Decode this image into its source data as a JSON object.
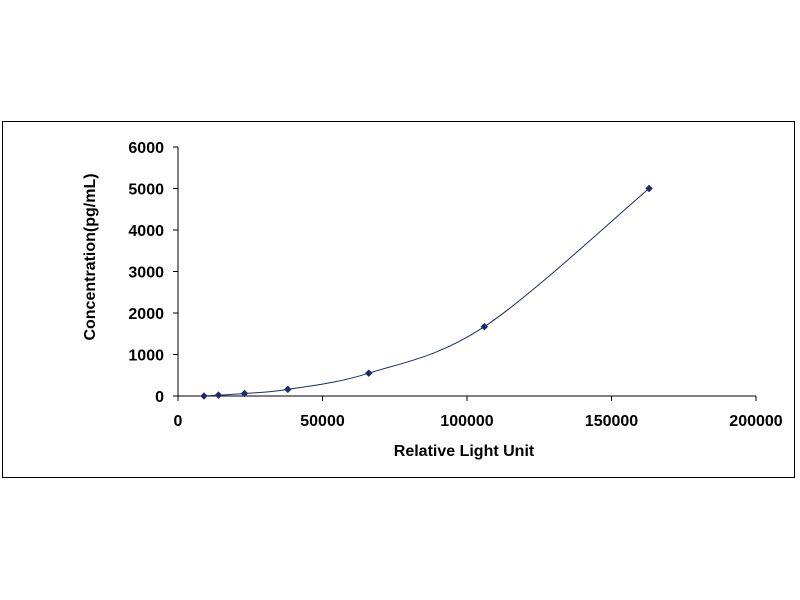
{
  "chart_data": {
    "type": "scatter",
    "title": "",
    "xlabel": "Relative Light Unit",
    "ylabel": "Concentration(pg/mL)",
    "xlim": [
      0,
      200000
    ],
    "ylim": [
      0,
      6000
    ],
    "x_ticks": [
      0,
      50000,
      100000,
      150000,
      200000
    ],
    "y_ticks": [
      0,
      1000,
      2000,
      3000,
      4000,
      5000,
      6000
    ],
    "x_tick_labels": [
      "0",
      "50000",
      "100000",
      "150000",
      "200000"
    ],
    "y_tick_labels": [
      "0",
      "1000",
      "2000",
      "3000",
      "4000",
      "5000",
      "6000"
    ],
    "grid": false,
    "legend": "none",
    "series": [
      {
        "x": [
          9000,
          14000,
          23000,
          38000,
          66000,
          106000,
          163000
        ],
        "y": [
          0,
          20,
          60,
          160,
          550,
          1670,
          5000
        ],
        "marker": "diamond",
        "color": "#1f2a6e",
        "line": "smooth"
      }
    ]
  }
}
